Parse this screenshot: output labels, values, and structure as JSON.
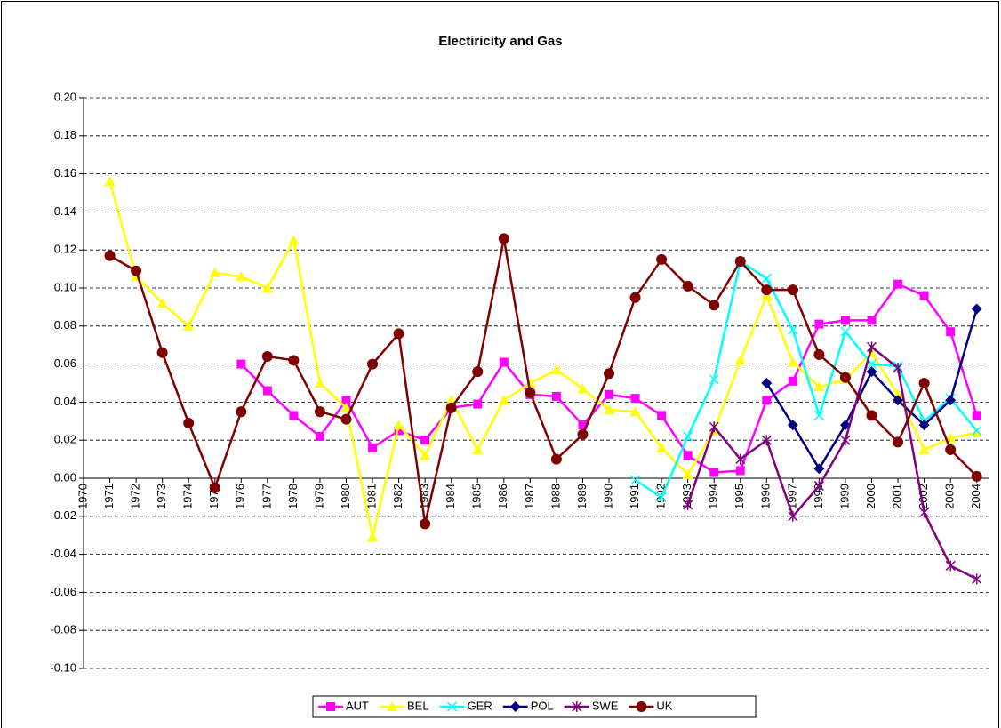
{
  "chart_data": {
    "type": "line",
    "title": "Electiricity and Gas",
    "categories": [
      "1970",
      "1971",
      "1972",
      "1973",
      "1974",
      "1975",
      "1976",
      "1977",
      "1978",
      "1979",
      "1980",
      "1981",
      "1982",
      "1983",
      "1984",
      "1985",
      "1986",
      "1987",
      "1988",
      "1989",
      "1990",
      "1991",
      "1992",
      "1993",
      "1994",
      "1995",
      "1996",
      "1997",
      "1998",
      "1999",
      "2000",
      "2001",
      "2002",
      "2003",
      "2004"
    ],
    "ylim": [
      -0.1,
      0.2
    ],
    "yticks": [
      {
        "value": -0.1,
        "label": "-0.10"
      },
      {
        "value": -0.08,
        "label": "-0.08"
      },
      {
        "value": -0.06,
        "label": "-0.06"
      },
      {
        "value": -0.04,
        "label": "-0.04"
      },
      {
        "value": -0.02,
        "label": "-0.02"
      },
      {
        "value": 0,
        "label": "0.00"
      },
      {
        "value": 0.02,
        "label": "0.02"
      },
      {
        "value": 0.04,
        "label": "0.04"
      },
      {
        "value": 0.06,
        "label": "0.06"
      },
      {
        "value": 0.08,
        "label": "0.08"
      },
      {
        "value": 0.1,
        "label": "0.10"
      },
      {
        "value": 0.12,
        "label": "0.12"
      },
      {
        "value": 0.14,
        "label": "0.14"
      },
      {
        "value": 0.16,
        "label": "0.16"
      },
      {
        "value": 0.18,
        "label": "0.18"
      },
      {
        "value": 0.2,
        "label": "0.20"
      }
    ],
    "grid": true,
    "legend": "bottom",
    "series": [
      {
        "name": "AUT",
        "color": "#ff00ff",
        "marker": "square",
        "values": [
          null,
          null,
          null,
          null,
          null,
          null,
          0.06,
          0.046,
          0.033,
          0.022,
          0.041,
          0.016,
          0.025,
          0.02,
          0.037,
          0.039,
          0.061,
          0.044,
          0.043,
          0.028,
          0.044,
          0.042,
          0.033,
          0.012,
          0.003,
          0.004,
          0.041,
          0.051,
          0.081,
          0.083,
          0.083,
          0.102,
          0.096,
          0.077,
          0.033
        ]
      },
      {
        "name": "BEL",
        "color": "#ffff00",
        "marker": "triangle",
        "values": [
          null,
          0.156,
          0.106,
          0.092,
          0.08,
          0.108,
          0.106,
          0.1,
          0.125,
          0.05,
          0.037,
          -0.031,
          0.028,
          0.012,
          0.041,
          0.015,
          0.041,
          0.05,
          0.057,
          0.047,
          0.036,
          0.035,
          0.016,
          0.002,
          0.025,
          0.062,
          0.096,
          0.061,
          0.048,
          0.052,
          0.066,
          0.044,
          0.015,
          0.021,
          0.024
        ]
      },
      {
        "name": "GER",
        "color": "#00ffff",
        "marker": "cross",
        "values": [
          null,
          null,
          null,
          null,
          null,
          null,
          null,
          null,
          null,
          null,
          null,
          null,
          null,
          null,
          null,
          null,
          null,
          null,
          null,
          null,
          null,
          -0.001,
          -0.01,
          0.022,
          0.052,
          0.114,
          0.105,
          0.078,
          0.033,
          0.077,
          0.06,
          0.059,
          0.03,
          0.042,
          0.025
        ]
      },
      {
        "name": "POL",
        "color": "#000080",
        "marker": "diamond",
        "values": [
          null,
          null,
          null,
          null,
          null,
          null,
          null,
          null,
          null,
          null,
          null,
          null,
          null,
          null,
          null,
          null,
          null,
          null,
          null,
          null,
          null,
          null,
          null,
          null,
          null,
          null,
          0.05,
          0.028,
          0.005,
          0.028,
          0.056,
          0.041,
          0.028,
          0.041,
          0.089
        ]
      },
      {
        "name": "SWE",
        "color": "#800080",
        "marker": "star",
        "values": [
          null,
          null,
          null,
          null,
          null,
          null,
          null,
          null,
          null,
          null,
          null,
          null,
          null,
          null,
          null,
          null,
          null,
          null,
          null,
          null,
          null,
          null,
          null,
          -0.014,
          0.027,
          0.01,
          0.02,
          -0.02,
          -0.004,
          0.02,
          0.069,
          0.058,
          -0.018,
          -0.046,
          -0.053
        ]
      },
      {
        "name": "UK",
        "color": "#800000",
        "marker": "circle",
        "values": [
          null,
          0.117,
          0.109,
          0.066,
          0.029,
          -0.005,
          0.035,
          0.064,
          0.062,
          0.035,
          0.031,
          0.06,
          0.076,
          -0.024,
          0.037,
          0.056,
          0.126,
          0.045,
          0.01,
          0.023,
          0.055,
          0.095,
          0.115,
          0.101,
          0.091,
          0.114,
          0.099,
          0.099,
          0.065,
          0.053,
          0.033,
          0.019,
          0.05,
          0.015,
          0.001
        ]
      }
    ]
  }
}
